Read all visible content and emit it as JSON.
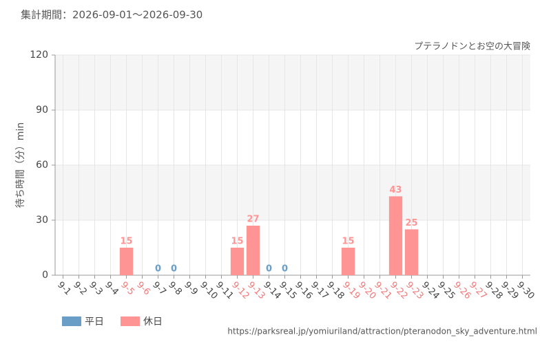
{
  "chart_data": {
    "type": "bar",
    "subtitle": "集計期間：2026-09-01～2026-09-30",
    "title": "プテラノドンとお空の大冒険",
    "y_label": "待ち時間（分）min",
    "source": "https://parksreal.jp/yomiuriland/attraction/pteranodon_sky_adventure.html",
    "categories": [
      "9-1",
      "9-2",
      "9-3",
      "9-4",
      "9-5",
      "9-6",
      "9-7",
      "9-8",
      "9-9",
      "9-10",
      "9-11",
      "9-12",
      "9-13",
      "9-14",
      "9-15",
      "9-16",
      "9-17",
      "9-18",
      "9-19",
      "9-20",
      "9-21",
      "9-22",
      "9-23",
      "9-24",
      "9-25",
      "9-26",
      "9-27",
      "9-28",
      "9-29",
      "9-30"
    ],
    "category_label_colors": [
      "#444",
      "#444",
      "#444",
      "#444",
      "#f07878",
      "#f07878",
      "#444",
      "#444",
      "#444",
      "#444",
      "#444",
      "#f07878",
      "#f07878",
      "#444",
      "#444",
      "#444",
      "#444",
      "#444",
      "#f07878",
      "#f07878",
      "#f07878",
      "#f07878",
      "#f07878",
      "#444",
      "#444",
      "#f07878",
      "#f07878",
      "#444",
      "#444",
      "#444"
    ],
    "series": [
      {
        "name": "平日",
        "color": "#6a9ec6",
        "values": [
          null,
          null,
          null,
          null,
          null,
          null,
          0,
          0,
          null,
          null,
          null,
          null,
          null,
          0,
          0,
          null,
          null,
          null,
          null,
          null,
          null,
          null,
          null,
          null,
          null,
          null,
          null,
          null,
          null,
          null
        ]
      },
      {
        "name": "休日",
        "color": "#ff9494",
        "values": [
          null,
          null,
          null,
          null,
          15,
          null,
          null,
          null,
          null,
          null,
          null,
          15,
          27,
          null,
          null,
          null,
          null,
          null,
          15,
          null,
          null,
          43,
          25,
          null,
          null,
          null,
          null,
          null,
          null,
          null
        ]
      }
    ],
    "ylim": [
      0,
      120
    ],
    "yticks": [
      0,
      30,
      60,
      90,
      120
    ],
    "grid": true
  }
}
